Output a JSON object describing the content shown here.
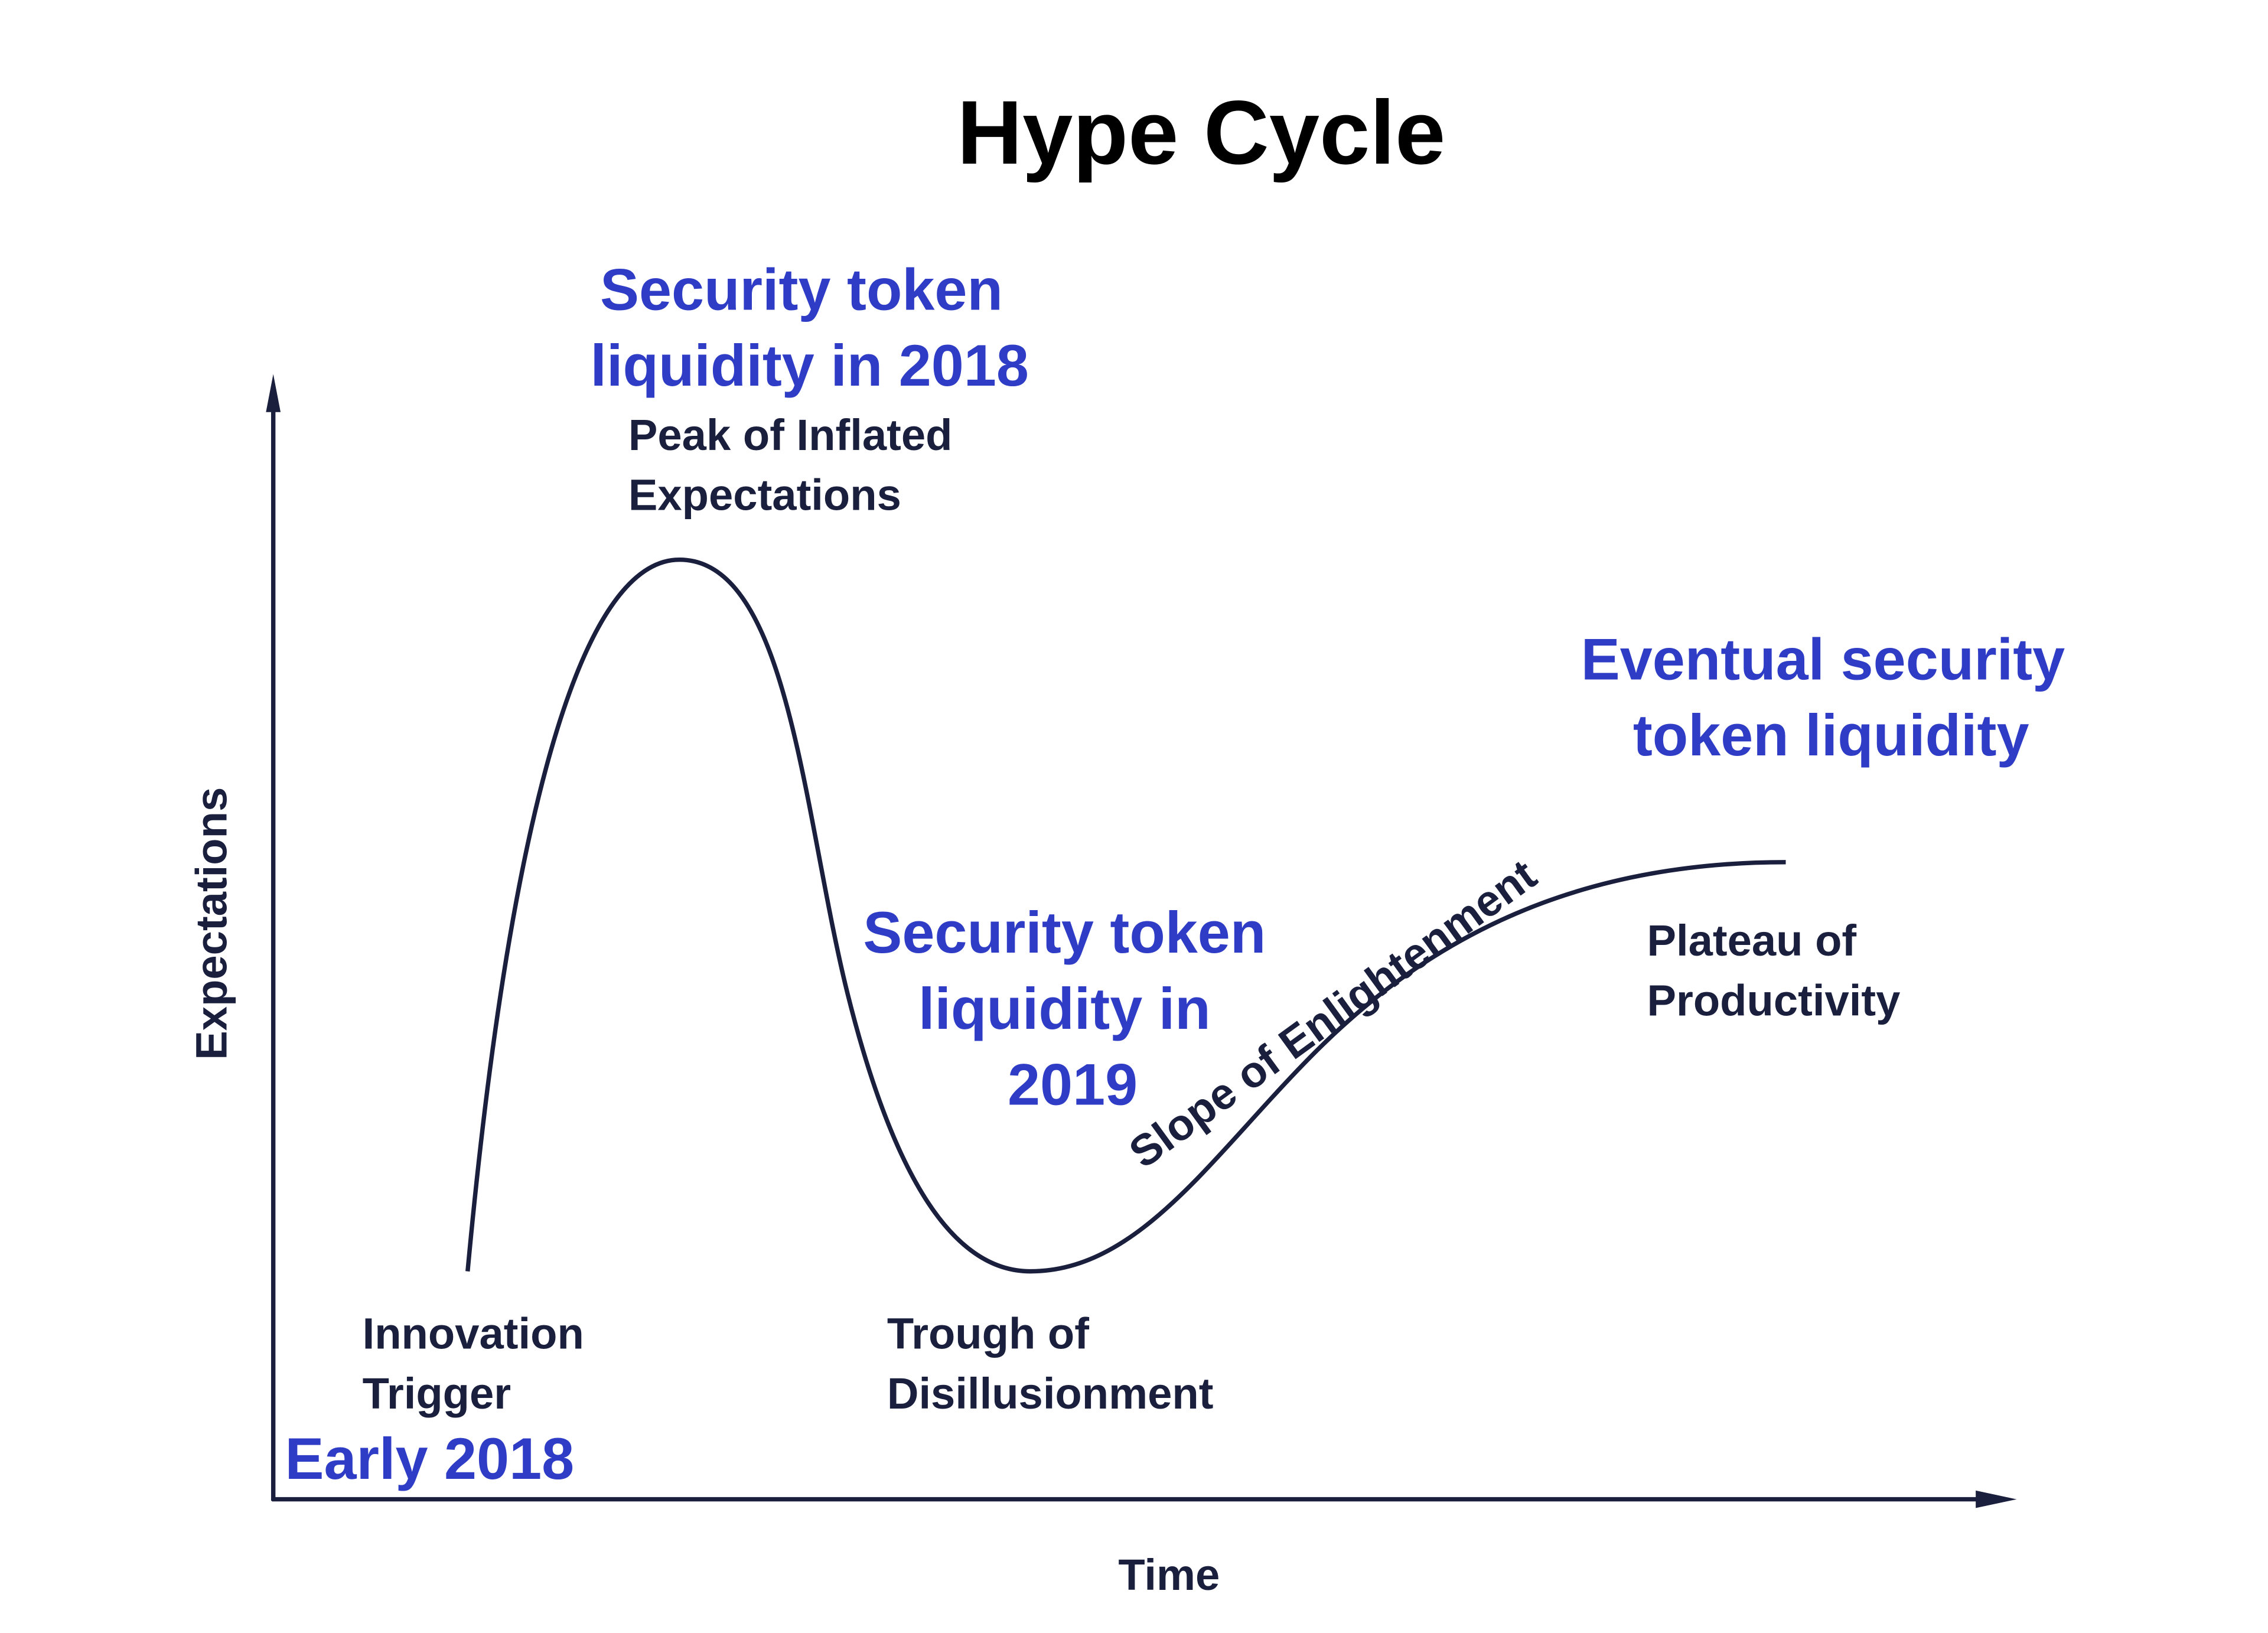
{
  "title": "Hype Cycle",
  "axes": {
    "y_label": "Expectations",
    "x_label": "Time"
  },
  "phases": [
    {
      "lines": [
        "Innovation",
        "Trigger"
      ]
    },
    {
      "lines": [
        "Peak of Inflated",
        "Expectations"
      ]
    },
    {
      "lines": [
        "Trough of",
        "Disillusionment"
      ]
    },
    {
      "lines": [
        "Slope of Enlightenment"
      ]
    },
    {
      "lines": [
        "Plateau of",
        "Productivity"
      ]
    }
  ],
  "annotations": [
    {
      "lines": [
        "Early 2018"
      ]
    },
    {
      "lines": [
        "Security token",
        "liquidity in 2018"
      ]
    },
    {
      "lines": [
        "Security token",
        "liquidity in",
        "2019"
      ]
    },
    {
      "lines": [
        "Eventual security",
        "token liquidity"
      ]
    }
  ]
}
